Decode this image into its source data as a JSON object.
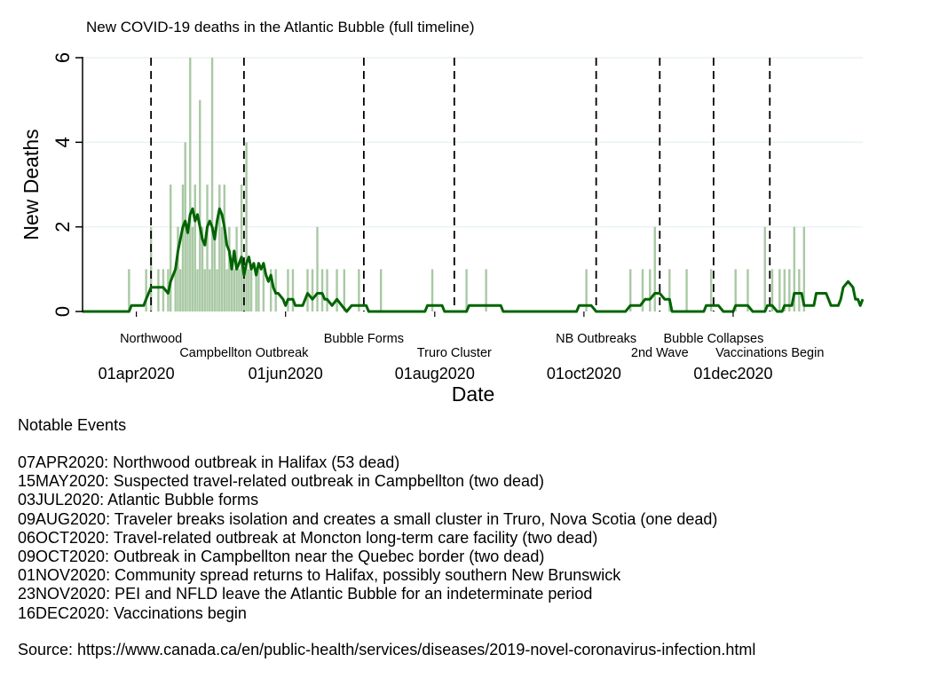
{
  "chart_data": {
    "type": "bar",
    "title": "New COVID-19 deaths in the Atlantic Bubble (full timeline)",
    "xlabel": "Date",
    "ylabel": "New Deaths",
    "x_start": "2020-03-10",
    "x_end": "2020-12-31",
    "ylim": [
      0,
      6
    ],
    "yticks": [
      0,
      2,
      4,
      6
    ],
    "xticks": [
      {
        "date": "2020-04-01",
        "label": "01apr2020"
      },
      {
        "date": "2020-06-01",
        "label": "01jun2020"
      },
      {
        "date": "2020-08-01",
        "label": "01aug2020"
      },
      {
        "date": "2020-10-01",
        "label": "01oct2020"
      },
      {
        "date": "2020-12-01",
        "label": "01dec2020"
      }
    ],
    "grid": true,
    "series": [
      {
        "type": "bar",
        "color": "#a9c9a4",
        "points": [
          [
            "2020-03-29",
            1
          ],
          [
            "2020-04-05",
            1
          ],
          [
            "2020-04-07",
            2
          ],
          [
            "2020-04-10",
            1
          ],
          [
            "2020-04-12",
            1
          ],
          [
            "2020-04-14",
            1
          ],
          [
            "2020-04-15",
            3
          ],
          [
            "2020-04-17",
            1
          ],
          [
            "2020-04-18",
            2
          ],
          [
            "2020-04-19",
            1
          ],
          [
            "2020-04-20",
            3
          ],
          [
            "2020-04-21",
            4
          ],
          [
            "2020-04-22",
            2
          ],
          [
            "2020-04-23",
            6
          ],
          [
            "2020-04-24",
            2
          ],
          [
            "2020-04-25",
            3
          ],
          [
            "2020-04-26",
            1
          ],
          [
            "2020-04-27",
            5
          ],
          [
            "2020-04-28",
            2
          ],
          [
            "2020-04-29",
            1
          ],
          [
            "2020-04-30",
            3
          ],
          [
            "2020-05-01",
            1
          ],
          [
            "2020-05-02",
            6
          ],
          [
            "2020-05-03",
            2
          ],
          [
            "2020-05-04",
            1
          ],
          [
            "2020-05-05",
            3
          ],
          [
            "2020-05-06",
            2
          ],
          [
            "2020-05-07",
            3
          ],
          [
            "2020-05-08",
            1
          ],
          [
            "2020-05-09",
            2
          ],
          [
            "2020-05-10",
            1
          ],
          [
            "2020-05-11",
            1
          ],
          [
            "2020-05-12",
            2
          ],
          [
            "2020-05-13",
            1
          ],
          [
            "2020-05-14",
            3
          ],
          [
            "2020-05-15",
            1
          ],
          [
            "2020-05-16",
            4
          ],
          [
            "2020-05-17",
            1
          ],
          [
            "2020-05-18",
            1
          ],
          [
            "2020-05-20",
            1
          ],
          [
            "2020-05-21",
            1
          ],
          [
            "2020-05-23",
            1
          ],
          [
            "2020-05-26",
            1
          ],
          [
            "2020-05-28",
            1
          ],
          [
            "2020-06-02",
            1
          ],
          [
            "2020-06-04",
            1
          ],
          [
            "2020-06-10",
            1
          ],
          [
            "2020-06-12",
            1
          ],
          [
            "2020-06-14",
            2
          ],
          [
            "2020-06-16",
            1
          ],
          [
            "2020-06-18",
            1
          ],
          [
            "2020-06-22",
            1
          ],
          [
            "2020-06-25",
            1
          ],
          [
            "2020-07-01",
            1
          ],
          [
            "2020-07-10",
            1
          ],
          [
            "2020-07-31",
            1
          ],
          [
            "2020-08-14",
            1
          ],
          [
            "2020-08-22",
            1
          ],
          [
            "2020-10-02",
            1
          ],
          [
            "2020-10-20",
            1
          ],
          [
            "2020-10-25",
            1
          ],
          [
            "2020-10-28",
            1
          ],
          [
            "2020-10-30",
            2
          ],
          [
            "2020-11-05",
            1
          ],
          [
            "2020-11-12",
            1
          ],
          [
            "2020-11-22",
            1
          ],
          [
            "2020-12-02",
            1
          ],
          [
            "2020-12-07",
            1
          ],
          [
            "2020-12-14",
            2
          ],
          [
            "2020-12-17",
            1
          ],
          [
            "2020-12-20",
            1
          ],
          [
            "2020-12-22",
            1
          ],
          [
            "2020-12-24",
            1
          ],
          [
            "2020-12-26",
            2
          ],
          [
            "2020-12-28",
            1
          ],
          [
            "2020-12-30",
            2
          ]
        ]
      },
      {
        "type": "line",
        "color": "#006400",
        "points": [
          [
            "2020-03-10",
            0
          ],
          [
            "2020-03-29",
            0
          ],
          [
            "2020-03-30",
            0.14
          ],
          [
            "2020-04-04",
            0.14
          ],
          [
            "2020-04-05",
            0.29
          ],
          [
            "2020-04-07",
            0.57
          ],
          [
            "2020-04-12",
            0.57
          ],
          [
            "2020-04-14",
            0.43
          ],
          [
            "2020-04-15",
            0.71
          ],
          [
            "2020-04-17",
            1.0
          ],
          [
            "2020-04-18",
            1.43
          ],
          [
            "2020-04-20",
            2.0
          ],
          [
            "2020-04-21",
            2.14
          ],
          [
            "2020-04-22",
            1.86
          ],
          [
            "2020-04-23",
            2.29
          ],
          [
            "2020-04-24",
            2.43
          ],
          [
            "2020-04-25",
            2.14
          ],
          [
            "2020-04-26",
            2.29
          ],
          [
            "2020-04-27",
            2.0
          ],
          [
            "2020-04-28",
            1.71
          ],
          [
            "2020-04-29",
            1.57
          ],
          [
            "2020-04-30",
            2.0
          ],
          [
            "2020-05-01",
            2.14
          ],
          [
            "2020-05-02",
            2.0
          ],
          [
            "2020-05-03",
            1.71
          ],
          [
            "2020-05-04",
            2.14
          ],
          [
            "2020-05-05",
            2.43
          ],
          [
            "2020-05-06",
            2.29
          ],
          [
            "2020-05-07",
            2.0
          ],
          [
            "2020-05-08",
            1.57
          ],
          [
            "2020-05-09",
            1.43
          ],
          [
            "2020-05-10",
            1.0
          ],
          [
            "2020-05-11",
            1.43
          ],
          [
            "2020-05-12",
            1.0
          ],
          [
            "2020-05-13",
            1.14
          ],
          [
            "2020-05-14",
            1.29
          ],
          [
            "2020-05-15",
            0.86
          ],
          [
            "2020-05-16",
            1.14
          ],
          [
            "2020-05-17",
            1.29
          ],
          [
            "2020-05-18",
            1.0
          ],
          [
            "2020-05-19",
            1.14
          ],
          [
            "2020-05-20",
            0.86
          ],
          [
            "2020-05-21",
            1.14
          ],
          [
            "2020-05-22",
            1.0
          ],
          [
            "2020-05-23",
            1.14
          ],
          [
            "2020-05-24",
            0.86
          ],
          [
            "2020-05-25",
            0.71
          ],
          [
            "2020-05-26",
            0.86
          ],
          [
            "2020-05-27",
            0.57
          ],
          [
            "2020-05-28",
            0.43
          ],
          [
            "2020-05-29",
            0.43
          ],
          [
            "2020-05-31",
            0.29
          ],
          [
            "2020-06-01",
            0.14
          ],
          [
            "2020-06-02",
            0.29
          ],
          [
            "2020-06-04",
            0.29
          ],
          [
            "2020-06-05",
            0.14
          ],
          [
            "2020-06-08",
            0.14
          ],
          [
            "2020-06-10",
            0.43
          ],
          [
            "2020-06-12",
            0.29
          ],
          [
            "2020-06-14",
            0.43
          ],
          [
            "2020-06-16",
            0.43
          ],
          [
            "2020-06-17",
            0.29
          ],
          [
            "2020-06-18",
            0.29
          ],
          [
            "2020-06-20",
            0.14
          ],
          [
            "2020-06-22",
            0.29
          ],
          [
            "2020-06-24",
            0.14
          ],
          [
            "2020-06-26",
            0
          ],
          [
            "2020-06-28",
            0.14
          ],
          [
            "2020-07-04",
            0.14
          ],
          [
            "2020-07-05",
            0
          ],
          [
            "2020-07-28",
            0
          ],
          [
            "2020-07-29",
            0.14
          ],
          [
            "2020-08-04",
            0.14
          ],
          [
            "2020-08-05",
            0
          ],
          [
            "2020-08-14",
            0
          ],
          [
            "2020-08-15",
            0.14
          ],
          [
            "2020-08-28",
            0.14
          ],
          [
            "2020-08-29",
            0
          ],
          [
            "2020-09-28",
            0
          ],
          [
            "2020-09-29",
            0.14
          ],
          [
            "2020-10-04",
            0.14
          ],
          [
            "2020-10-06",
            0
          ],
          [
            "2020-10-18",
            0
          ],
          [
            "2020-10-20",
            0.14
          ],
          [
            "2020-10-24",
            0.14
          ],
          [
            "2020-10-26",
            0.29
          ],
          [
            "2020-10-28",
            0.29
          ],
          [
            "2020-10-30",
            0.43
          ],
          [
            "2020-11-01",
            0.43
          ],
          [
            "2020-11-03",
            0.29
          ],
          [
            "2020-11-05",
            0.29
          ],
          [
            "2020-11-06",
            0
          ],
          [
            "2020-11-19",
            0
          ],
          [
            "2020-11-20",
            0.14
          ],
          [
            "2020-11-25",
            0.14
          ],
          [
            "2020-11-27",
            0
          ],
          [
            "2020-12-01",
            0
          ],
          [
            "2020-12-02",
            0.14
          ],
          [
            "2020-12-07",
            0.14
          ],
          [
            "2020-12-09",
            0
          ],
          [
            "2020-12-14",
            0
          ],
          [
            "2020-12-15",
            0.14
          ],
          [
            "2020-12-17",
            0.14
          ],
          [
            "2020-12-19",
            0
          ],
          [
            "2020-12-21",
            0
          ],
          [
            "2020-12-22",
            0.14
          ],
          [
            "2020-12-25",
            0.14
          ],
          [
            "2020-12-26",
            0.43
          ],
          [
            "2020-12-29",
            0.43
          ],
          [
            "2020-12-30",
            0.14
          ],
          [
            "2021-01-03",
            0.14
          ],
          [
            "2021-01-04",
            0.43
          ],
          [
            "2021-01-08",
            0.43
          ],
          [
            "2021-01-09",
            0.29
          ],
          [
            "2021-01-10",
            0.14
          ],
          [
            "2021-01-13",
            0.14
          ],
          [
            "2021-01-14",
            0.29
          ],
          [
            "2021-01-15",
            0.57
          ],
          [
            "2021-01-17",
            0.71
          ],
          [
            "2021-01-19",
            0.57
          ],
          [
            "2021-01-20",
            0.29
          ],
          [
            "2021-01-21",
            0.29
          ],
          [
            "2021-01-22",
            0.14
          ],
          [
            "2021-01-23",
            0.29
          ]
        ]
      }
    ],
    "events": [
      {
        "date": "2020-04-07",
        "label": "Northwood",
        "row": 0
      },
      {
        "date": "2020-05-15",
        "label": "Campbellton Outbreak",
        "row": 1
      },
      {
        "date": "2020-07-03",
        "label": "Bubble Forms",
        "row": 0
      },
      {
        "date": "2020-08-09",
        "label": "Truro Cluster",
        "row": 1
      },
      {
        "date": "2020-10-06",
        "label": "NB Outbreaks",
        "row": 0
      },
      {
        "date": "2020-11-01",
        "label": "2nd Wave",
        "row": 1
      },
      {
        "date": "2020-11-23",
        "label": "Bubble Collapses",
        "row": 0
      },
      {
        "date": "2020-12-16",
        "label": "Vaccinations Begin",
        "row": 1
      }
    ]
  },
  "notes_heading": "Notable Events",
  "notes": [
    "07APR2020: Northwood outbreak in Halifax (53 dead)",
    "15MAY2020: Suspected travel-related outbreak in Campbellton (two dead)",
    "03JUL2020: Atlantic Bubble forms",
    "09AUG2020: Traveler breaks isolation and creates a small cluster in Truro, Nova Scotia (one dead)",
    "06OCT2020: Travel-related outbreak at Moncton long-term care facility (two dead)",
    "09OCT2020: Outbreak in Campbellton near the Quebec border (two dead)",
    "01NOV2020: Community spread returns to Halifax, possibly southern New Brunswick",
    "23NOV2020: PEI and NFLD leave the Atlantic Bubble for an indeterminate period",
    "16DEC2020: Vaccinations begin"
  ],
  "source": "Source: https://www.canada.ca/en/public-health/services/diseases/2019-novel-coronavirus-infection.html"
}
